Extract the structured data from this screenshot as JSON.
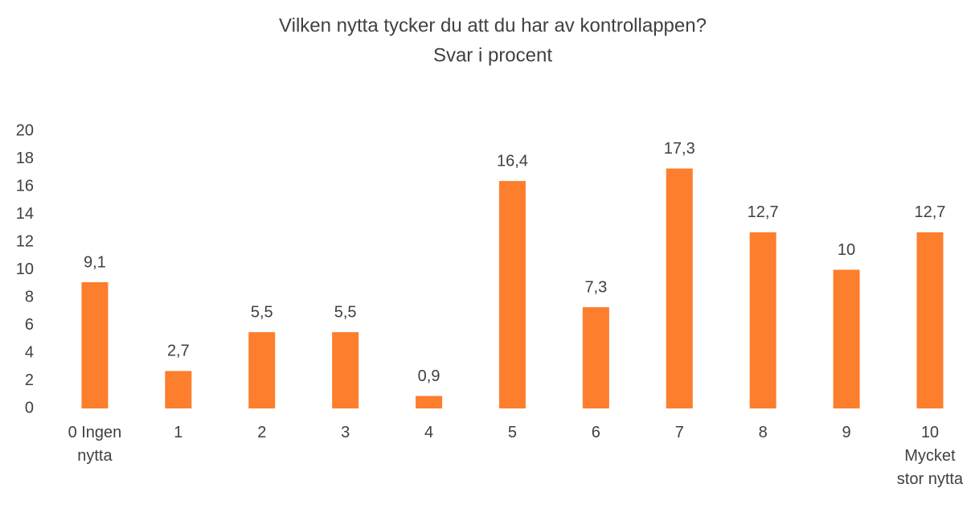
{
  "chart_data": {
    "type": "bar",
    "title": "Vilken nytta tycker du att du har av kontrollappen?",
    "subtitle": "Svar i procent",
    "categories": [
      "0 Ingen nytta",
      "1",
      "2",
      "3",
      "4",
      "5",
      "6",
      "7",
      "8",
      "9",
      "10 Mycket stor nytta"
    ],
    "values": [
      9.1,
      2.7,
      5.5,
      5.5,
      0.9,
      16.4,
      7.3,
      17.3,
      12.7,
      10,
      12.7
    ],
    "value_labels": [
      "9,1",
      "2,7",
      "5,5",
      "5,5",
      "0,9",
      "16,4",
      "7,3",
      "17,3",
      "12,7",
      "10",
      "12,7"
    ],
    "color": "#fd7e2d",
    "ylim": [
      0,
      20
    ],
    "yticks": [
      0,
      2,
      4,
      6,
      8,
      10,
      12,
      14,
      16,
      18,
      20
    ],
    "grid": false
  }
}
